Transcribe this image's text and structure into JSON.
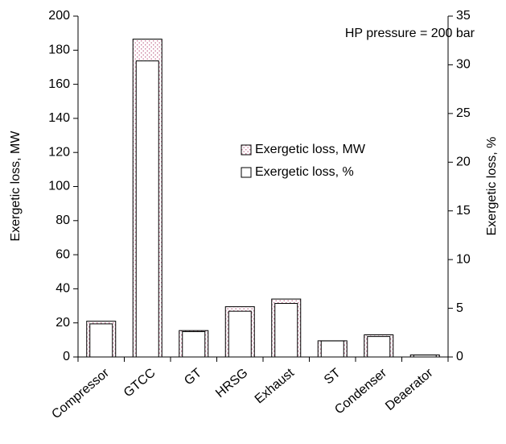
{
  "chart_data": {
    "type": "bar",
    "annotation": "HP pressure = 200 bar",
    "y_label": "Exergetic loss, MW",
    "y2_label": "Exergetic loss, %",
    "categories": [
      "Compressor",
      "GTCC",
      "GT",
      "HRSG",
      "Exhaust",
      "ST",
      "Condenser",
      "Deaerator"
    ],
    "series": [
      {
        "name": "Exergetic loss, MW",
        "color": "#c87898",
        "values": [
          21,
          186.5,
          15.5,
          29.5,
          34,
          9.5,
          13,
          1.2
        ]
      },
      {
        "name": "Exergetic loss, %",
        "color": "#ffffff",
        "axis": "y2",
        "values": [
          3.4,
          30.4,
          2.6,
          4.7,
          5.5,
          1.65,
          2.1,
          0.2
        ]
      }
    ],
    "ylim": [
      0,
      200
    ],
    "yticks": [
      0,
      20,
      40,
      60,
      80,
      100,
      120,
      140,
      160,
      180,
      200
    ],
    "y2lim": [
      0,
      35
    ],
    "y2ticks": [
      0,
      5,
      10,
      15,
      20,
      25,
      30,
      35
    ]
  }
}
